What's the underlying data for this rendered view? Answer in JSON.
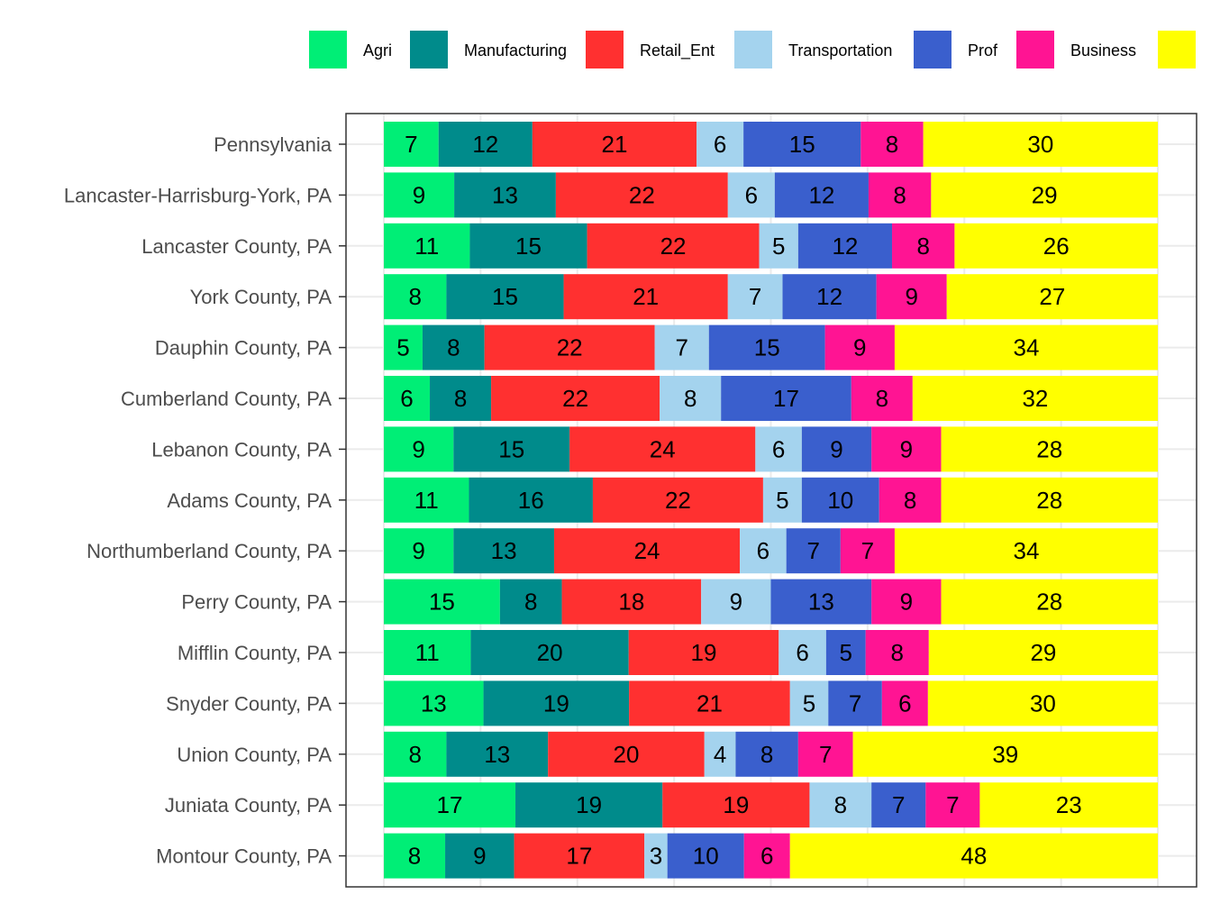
{
  "chart_data": {
    "type": "bar",
    "orientation": "horizontal",
    "stacked": true,
    "title": "",
    "xlabel": "",
    "ylabel": "",
    "legend_position": "top",
    "grid": true,
    "categories": [
      "Pennsylvania",
      "Lancaster-Harrisburg-York, PA",
      "Lancaster County, PA",
      "York County, PA",
      "Dauphin County, PA",
      "Cumberland County, PA",
      "Lebanon County, PA",
      "Adams County, PA",
      "Northumberland County, PA",
      "Perry County, PA",
      "Mifflin County, PA",
      "Snyder County, PA",
      "Union County, PA",
      "Juniata County, PA",
      "Montour County, PA"
    ],
    "series": [
      {
        "name": "Agri",
        "color": "#00EE76",
        "values": [
          7,
          9,
          11,
          8,
          5,
          6,
          9,
          11,
          9,
          15,
          11,
          13,
          8,
          17,
          8
        ]
      },
      {
        "name": "Manufacturing",
        "color": "#008B8B",
        "values": [
          12,
          13,
          15,
          15,
          8,
          8,
          15,
          16,
          13,
          8,
          20,
          19,
          13,
          19,
          9
        ]
      },
      {
        "name": "Retail_Ent",
        "color": "#FF3030",
        "values": [
          21,
          22,
          22,
          21,
          22,
          22,
          24,
          22,
          24,
          18,
          19,
          21,
          20,
          19,
          17
        ]
      },
      {
        "name": "Transportation",
        "color": "#A4D3EE",
        "values": [
          6,
          6,
          5,
          7,
          7,
          8,
          6,
          5,
          6,
          9,
          6,
          5,
          4,
          8,
          3
        ]
      },
      {
        "name": "Prof",
        "color": "#3A5FCD",
        "values": [
          15,
          12,
          12,
          12,
          15,
          17,
          9,
          10,
          7,
          13,
          5,
          7,
          8,
          7,
          10
        ]
      },
      {
        "name": "Business",
        "color": "#FF1493",
        "values": [
          8,
          8,
          8,
          9,
          9,
          8,
          9,
          8,
          7,
          9,
          8,
          6,
          7,
          7,
          6
        ]
      },
      {
        "name": "",
        "color": "#FFFF00",
        "values": [
          30,
          29,
          26,
          27,
          34,
          32,
          28,
          28,
          34,
          28,
          29,
          30,
          39,
          23,
          48
        ]
      }
    ]
  }
}
